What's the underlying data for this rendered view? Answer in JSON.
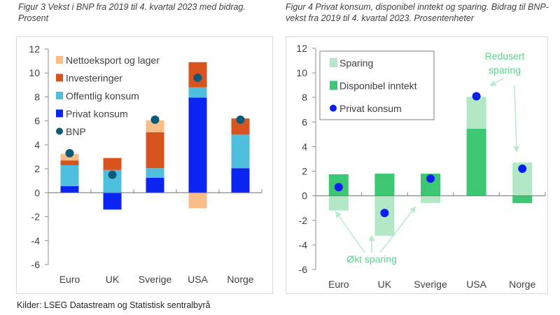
{
  "footer": "Kilder: LSEG Datastream og Statistisk sentralbyrå",
  "chart_data": [
    {
      "type": "bar",
      "stacked": true,
      "title": "Figur 3 Vekst i BNP fra 2019 til 4. kvartal 2023 med bidrag. Prosent",
      "xlabel": "",
      "ylabel": "",
      "ylim": [
        -6,
        12
      ],
      "yticks": [
        12,
        10,
        8,
        6,
        4,
        2,
        0,
        -2,
        -4,
        -6
      ],
      "grid": false,
      "legend_position": "top-left",
      "categories": [
        "Euro",
        "UK",
        "Sverige",
        "USA",
        "Norge"
      ],
      "series": [
        {
          "name": "Privat konsum",
          "color": "#0a24f2",
          "values": [
            0.55,
            -1.4,
            1.25,
            7.95,
            2.05
          ]
        },
        {
          "name": "Offentlig konsum",
          "color": "#4fbfe0",
          "values": [
            1.75,
            1.9,
            0.8,
            0.85,
            2.8
          ]
        },
        {
          "name": "Investeringer",
          "color": "#d9531e",
          "values": [
            0.4,
            1.0,
            3.0,
            2.1,
            1.35
          ]
        },
        {
          "name": "Nettoeksport og lager",
          "color": "#f9be88",
          "values": [
            0.55,
            -0.05,
            1.0,
            -1.3,
            -0.05
          ]
        }
      ],
      "markers": {
        "name": "BNP",
        "color": "#0d5a78",
        "values": [
          3.3,
          1.5,
          6.1,
          9.6,
          6.1
        ]
      },
      "legend": [
        "Nettoeksport og lager",
        "Investeringer",
        "Offentlig konsum",
        "Privat konsum",
        "BNP"
      ]
    },
    {
      "type": "bar",
      "stacked": true,
      "title": "Figur 4 Privat konsum, disponibel inntekt og sparing. Bidrag til BNP-vekst fra 2019 til 4. kvartal 2023. Prosentenheter",
      "xlabel": "",
      "ylabel": "",
      "ylim": [
        -6,
        12
      ],
      "yticks": [
        12,
        10,
        8,
        6,
        4,
        2,
        0,
        -2,
        -4,
        -6
      ],
      "grid": false,
      "legend_position": "top-left",
      "categories": [
        "Euro",
        "UK",
        "Sverige",
        "USA",
        "Norge"
      ],
      "series": [
        {
          "name": "Disponibel inntekt",
          "color": "#3cc872",
          "values": [
            1.75,
            1.8,
            1.8,
            5.45,
            -0.6
          ]
        },
        {
          "name": "Sparing",
          "color": "#b2e8c6",
          "values": [
            -1.2,
            -3.25,
            -0.6,
            2.6,
            2.7
          ]
        }
      ],
      "markers": {
        "name": "Privat konsum",
        "color": "#0a1ff0",
        "values": [
          0.7,
          -1.4,
          1.4,
          8.1,
          2.2
        ]
      },
      "legend": [
        "Sparing",
        "Disponibel inntekt",
        "Privat konsum"
      ],
      "annotations": [
        {
          "text": "Redusert",
          "text2": "sparing",
          "color": "#5fcf8f",
          "points_to": [
            "USA",
            "Norge"
          ]
        },
        {
          "text": "Økt sparing",
          "color": "#5fcf8f",
          "points_to": [
            "Euro",
            "UK",
            "Sverige"
          ]
        }
      ]
    }
  ]
}
